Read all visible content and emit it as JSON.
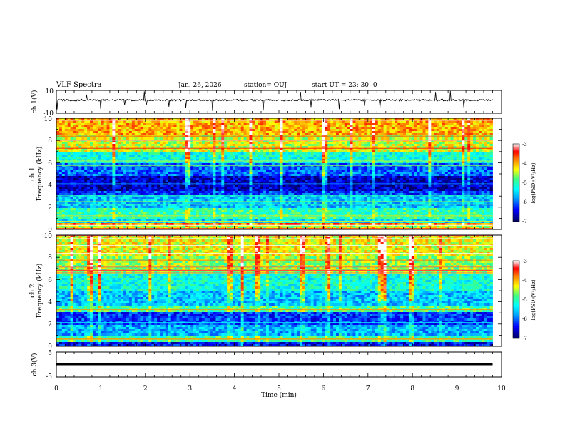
{
  "header": {
    "title": "VLF Spectra",
    "date": "Jan. 26, 2026",
    "station": "station= OUJ",
    "start": "start  UT  =   23: 30: 0"
  },
  "colors": {
    "panel_border": "#000000",
    "colormap": [
      "#000080",
      "#0000ff",
      "#00a0ff",
      "#00ffff",
      "#40ff80",
      "#a0ff20",
      "#ffff00",
      "#ff8000",
      "#ff0000",
      "#ffffff"
    ]
  },
  "chart_data": [
    {
      "type": "line",
      "name": "ch1-waveform",
      "ylabel": "ch.1(V)",
      "ylim": [
        -10,
        10
      ],
      "yticks": [
        "10",
        "-10"
      ],
      "trace_description": "noisy baseline near 1.5 V with short negative spikes",
      "baseline": 1.5
    },
    {
      "type": "heatmap",
      "name": "ch1-spectrogram",
      "ylabel": "ch.1",
      "ylabel2": "Frequency (kHz)",
      "ylim": [
        0,
        10
      ],
      "yticks": [
        "0",
        "2",
        "4",
        "6",
        "8",
        "10"
      ],
      "colorbar": {
        "label": "log(PSD)(V²/Hz)",
        "ticks": [
          "-3",
          "-4",
          "-5",
          "-6",
          "-7"
        ],
        "range": [
          -7,
          -3
        ]
      },
      "bands_kHz_log10psd": [
        [
          0,
          0.3,
          -4.5
        ],
        [
          0.3,
          0.6,
          -3.8
        ],
        [
          0.6,
          1.0,
          -5.5
        ],
        [
          1.0,
          2.0,
          -5.0
        ],
        [
          2.0,
          3.0,
          -5.6
        ],
        [
          3.0,
          3.5,
          -6.2
        ],
        [
          3.5,
          4.8,
          -6.6
        ],
        [
          4.8,
          6.0,
          -6.0
        ],
        [
          6.0,
          7.0,
          -5.2
        ],
        [
          7.0,
          8.5,
          -4.4
        ],
        [
          8.5,
          10.0,
          -4.0
        ]
      ]
    },
    {
      "type": "heatmap",
      "name": "ch2-spectrogram",
      "ylabel": "ch.2",
      "ylabel2": "Frequency (kHz)",
      "ylim": [
        0,
        10
      ],
      "yticks": [
        "0",
        "2",
        "4",
        "6",
        "8",
        "10"
      ],
      "colorbar": {
        "label": "log(PSD)(V²/Hz)",
        "ticks": [
          "-3",
          "-4",
          "-5",
          "-6",
          "-7"
        ],
        "range": [
          -7,
          -3
        ]
      },
      "bands_kHz_log10psd": [
        [
          0,
          0.4,
          -6.4
        ],
        [
          0.4,
          1.0,
          -5.0
        ],
        [
          1.0,
          2.0,
          -5.7
        ],
        [
          2.0,
          3.0,
          -6.2
        ],
        [
          3.0,
          3.6,
          -4.9
        ],
        [
          3.6,
          5.0,
          -5.6
        ],
        [
          5.0,
          6.5,
          -5.2
        ],
        [
          6.5,
          8.0,
          -4.6
        ],
        [
          8.0,
          10.0,
          -4.3
        ]
      ]
    },
    {
      "type": "line",
      "name": "ch3-waveform",
      "ylabel": "ch.3(V)",
      "ylim": [
        -5,
        5
      ],
      "yticks": [
        "5",
        "0",
        "-5"
      ],
      "constant_value": 0
    }
  ],
  "x_axis": {
    "label": "Time (min)",
    "xlim": [
      0,
      10
    ],
    "data_end_min": 9.8,
    "ticks": [
      "0",
      "1",
      "2",
      "3",
      "4",
      "5",
      "6",
      "7",
      "8",
      "9",
      "10"
    ]
  }
}
